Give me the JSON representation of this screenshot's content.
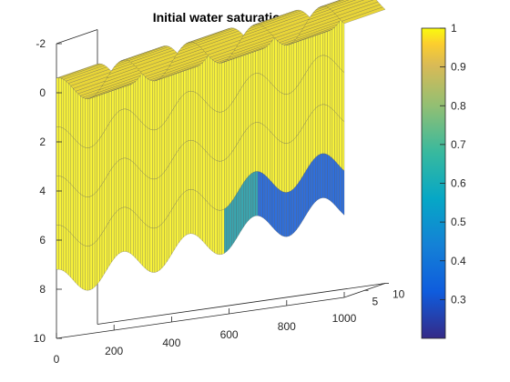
{
  "chart_data": {
    "type": "surface3d",
    "title": "Initial water saturation",
    "colormap": "parula",
    "x_axis": {
      "ticks": [
        0,
        200,
        400,
        600,
        800,
        1000
      ],
      "range": [
        0,
        1000
      ]
    },
    "y_axis": {
      "ticks": [
        5,
        10
      ],
      "range": [
        0,
        10
      ]
    },
    "z_axis": {
      "ticks": [
        -2,
        0,
        2,
        4,
        6,
        8,
        10
      ],
      "range": [
        -2,
        10
      ],
      "reversed": true
    },
    "colorbar": {
      "ticks": [
        0.3,
        0.4,
        0.5,
        0.6,
        0.7,
        0.8,
        0.9,
        1
      ],
      "range": [
        0.2,
        1
      ]
    },
    "layer_top_depths_at_crest": [
      0,
      2,
      4,
      6,
      7.8
    ],
    "fold_period_x": 230,
    "fold_amplitude_depth": 0.6,
    "saturation_by_region": [
      {
        "region": "upper layers, x 0-1000",
        "value": 1.0
      },
      {
        "region": "layer 6-7, x 0-600",
        "value": 1.0
      },
      {
        "region": "lower layer, x 600-1000",
        "value": 0.35
      },
      {
        "region": "transition zone, x 600-700",
        "value": 0.6
      }
    ]
  }
}
